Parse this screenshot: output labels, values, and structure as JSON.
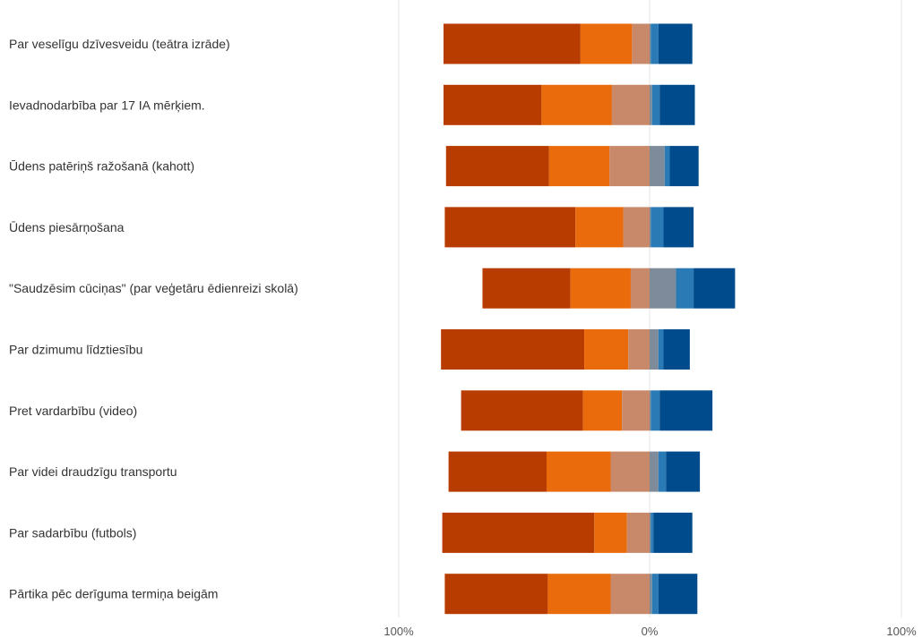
{
  "chart_data": {
    "type": "bar",
    "orientation": "horizontal",
    "stacking": "diverging",
    "x_ticks": [
      "100%",
      "0%",
      "100%"
    ],
    "xlim": [
      -100,
      100
    ],
    "grid": true,
    "categories": [
      "Par veselīgu dzīvesveidu (teātra izrāde)",
      "Ievadnodarbība par 17 IA mērķiem.",
      "Ūdens patēriņš ražošanā (kahott)",
      "Ūdens piesārņošana",
      "\"Saudzēsim cūciņas\" (par veģetāru ēdienreizi skolā)",
      "Par dzimumu līdztiesību",
      "Pret vardarbību (video)",
      "Par videi draudzīgu transportu",
      "Par sadarbību (futbols)",
      "Pārtika pēc derīguma termiņa beigām"
    ],
    "segment_colors": [
      "#b83b00",
      "#ea6b0c",
      "#c8896a",
      "#7d8b9b",
      "#2a7ab5",
      "#004b8c"
    ],
    "segment_directions": [
      "negative",
      "negative",
      "negative",
      "positive",
      "positive",
      "positive"
    ],
    "segments": [
      [
        54.5,
        20.5,
        7.0,
        0.5,
        3.0,
        13.5
      ],
      [
        39.0,
        28.0,
        15.0,
        1.0,
        3.0,
        14.0
      ],
      [
        41.0,
        24.0,
        16.0,
        6.0,
        2.0,
        11.5
      ],
      [
        52.0,
        19.0,
        10.5,
        0.5,
        5.0,
        12.0
      ],
      [
        35.0,
        24.0,
        7.5,
        10.5,
        7.0,
        16.5
      ],
      [
        57.0,
        17.5,
        8.5,
        3.5,
        2.0,
        10.5
      ],
      [
        48.5,
        15.5,
        11.0,
        0.5,
        3.5,
        21.0
      ],
      [
        39.0,
        25.5,
        15.5,
        3.5,
        3.0,
        13.5
      ],
      [
        60.5,
        13.0,
        9.0,
        0.5,
        1.0,
        15.5
      ],
      [
        41.0,
        25.0,
        15.5,
        1.0,
        2.5,
        15.5
      ]
    ]
  }
}
